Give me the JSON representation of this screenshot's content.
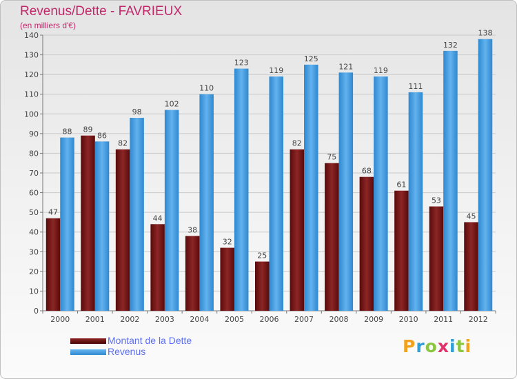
{
  "title": "Revenus/Dette - FAVRIEUX",
  "subtitle": "(en milliers d'€)",
  "logo": "Proxiti",
  "chart_data": {
    "type": "bar",
    "categories": [
      "2000",
      "2001",
      "2002",
      "2003",
      "2004",
      "2005",
      "2006",
      "2007",
      "2008",
      "2009",
      "2010",
      "2011",
      "2012"
    ],
    "series": [
      {
        "name": "Montant de la Dette",
        "color": "#7a1a1a",
        "values": [
          47,
          89,
          82,
          44,
          38,
          32,
          25,
          82,
          75,
          68,
          61,
          53,
          45
        ]
      },
      {
        "name": "Revenus",
        "color": "#4aa0e0",
        "values": [
          88,
          86,
          98,
          102,
          110,
          123,
          119,
          125,
          121,
          119,
          111,
          132,
          138
        ]
      }
    ],
    "ylim": [
      0,
      140
    ],
    "yticks": [
      0,
      10,
      20,
      30,
      40,
      50,
      60,
      70,
      80,
      90,
      100,
      110,
      120,
      130,
      140
    ],
    "grid": true,
    "legend_position": "bottom-left"
  }
}
